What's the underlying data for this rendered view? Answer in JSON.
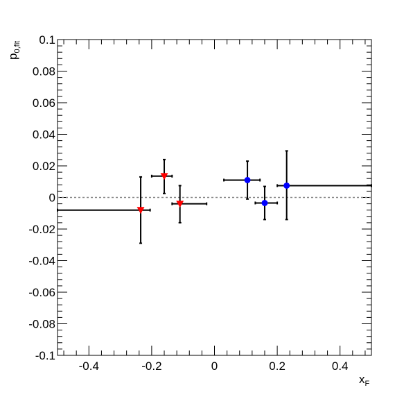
{
  "chart_data": {
    "type": "scatter",
    "title": "",
    "xlabel": {
      "main": "x",
      "sub": "F"
    },
    "ylabel": {
      "main": "p",
      "sub": "0,fit"
    },
    "xlim": [
      -0.5,
      0.5
    ],
    "ylim": [
      -0.1,
      0.1
    ],
    "x_ticks": [
      -0.4,
      -0.2,
      0,
      0.2,
      0.4
    ],
    "x_tick_labels": [
      "-0.4",
      "-0.2",
      "0",
      "0.2",
      "0.4"
    ],
    "y_ticks": [
      -0.1,
      -0.08,
      -0.06,
      -0.04,
      -0.02,
      0,
      0.02,
      0.04,
      0.06,
      0.08,
      0.1
    ],
    "y_tick_labels": [
      "-0.1",
      "-0.08",
      "-0.06",
      "-0.04",
      "-0.02",
      "0",
      "0.02",
      "0.04",
      "0.06",
      "0.08",
      "0.1"
    ],
    "grid": false,
    "reference_line": {
      "y": 0,
      "style": "dashed",
      "color": "#888888"
    },
    "series": [
      {
        "marker": "triangle-down",
        "color": "#ff0000",
        "points": [
          {
            "x": -0.235,
            "y": -0.008,
            "xerr": [
              0.265,
              0.03
            ],
            "yerr": [
              0.021,
              0.021
            ]
          },
          {
            "x": -0.16,
            "y": 0.0135,
            "xerr": [
              0.04,
              0.025
            ],
            "yerr": [
              0.011,
              0.0105
            ]
          },
          {
            "x": -0.11,
            "y": -0.004,
            "xerr": [
              0.025,
              0.085
            ],
            "yerr": [
              0.012,
              0.0115
            ]
          }
        ]
      },
      {
        "marker": "circle",
        "color": "#0000ff",
        "points": [
          {
            "x": 0.105,
            "y": 0.011,
            "xerr": [
              0.075,
              0.04
            ],
            "yerr": [
              0.012,
              0.012
            ]
          },
          {
            "x": 0.16,
            "y": -0.0035,
            "xerr": [
              0.03,
              0.04
            ],
            "yerr": [
              0.0105,
              0.0105
            ]
          },
          {
            "x": 0.23,
            "y": 0.0075,
            "xerr": [
              0.03,
              0.27
            ],
            "yerr": [
              0.0215,
              0.022
            ]
          }
        ]
      }
    ]
  }
}
